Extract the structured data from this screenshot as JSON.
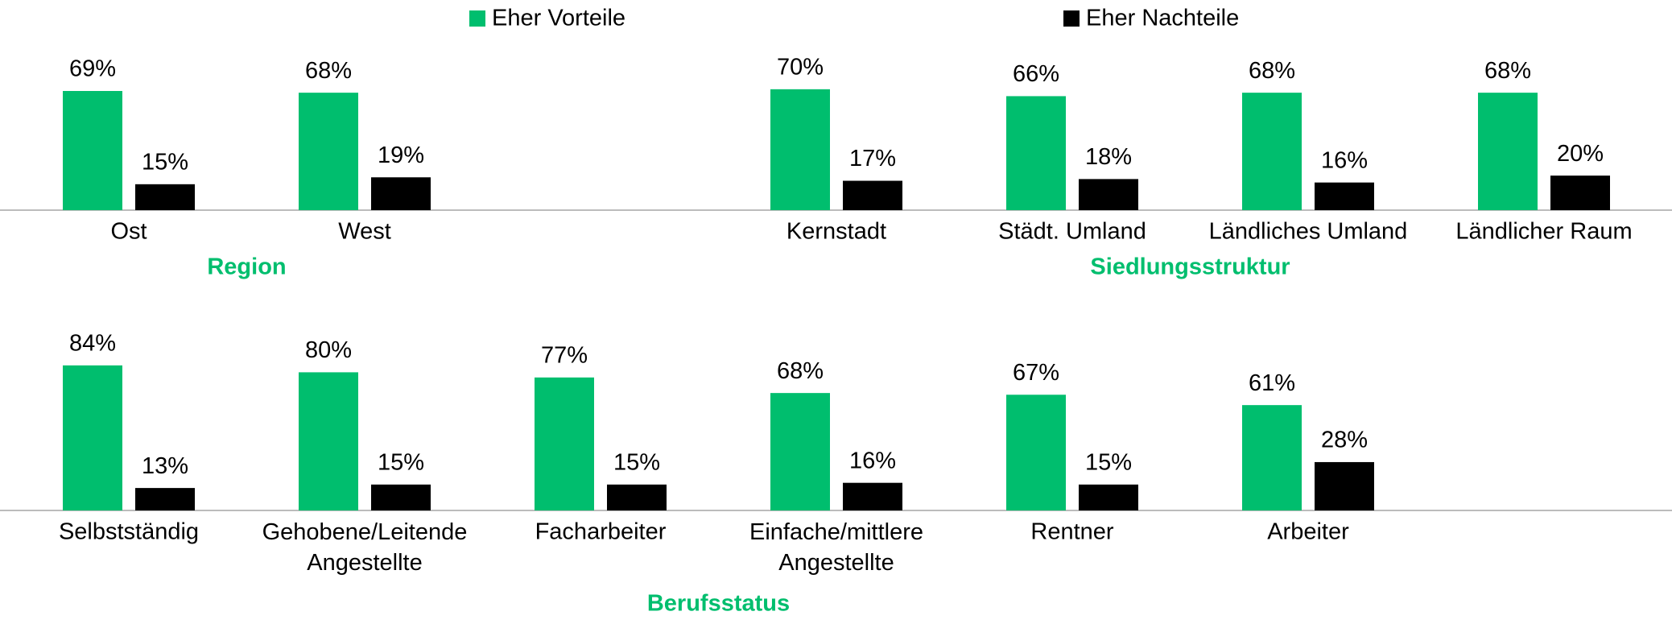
{
  "chart_data": [
    {
      "type": "bar",
      "title": "Region",
      "categories": [
        "Ost",
        "West"
      ],
      "series": [
        {
          "name": "Eher Vorteile",
          "color": "#00be6e",
          "values": [
            69,
            68
          ],
          "value_labels": [
            "69%",
            "68%"
          ]
        },
        {
          "name": "Eher Nachteile",
          "color": "#000000",
          "values": [
            15,
            19
          ],
          "value_labels": [
            "15%",
            "19%"
          ]
        }
      ]
    },
    {
      "type": "bar",
      "title": "Siedlungsstruktur",
      "categories": [
        "Kernstadt",
        "Städt. Umland",
        "Ländliches Umland",
        "Ländlicher Raum"
      ],
      "series": [
        {
          "name": "Eher Vorteile",
          "color": "#00be6e",
          "values": [
            70,
            66,
            68,
            68
          ],
          "value_labels": [
            "70%",
            "66%",
            "68%",
            "68%"
          ]
        },
        {
          "name": "Eher Nachteile",
          "color": "#000000",
          "values": [
            17,
            18,
            16,
            20
          ],
          "value_labels": [
            "17%",
            "18%",
            "16%",
            "20%"
          ]
        }
      ]
    },
    {
      "type": "bar",
      "title": "Berufsstatus",
      "categories": [
        "Selbstständig",
        "Gehobene/Leitende\nAngestellte",
        "Facharbeiter",
        "Einfache/mittlere\nAngestellte",
        "Rentner",
        "Arbeiter"
      ],
      "series": [
        {
          "name": "Eher Vorteile",
          "color": "#00be6e",
          "values": [
            84,
            80,
            77,
            68,
            67,
            61
          ],
          "value_labels": [
            "84%",
            "80%",
            "77%",
            "68%",
            "67%",
            "61%"
          ]
        },
        {
          "name": "Eher Nachteile",
          "color": "#000000",
          "values": [
            13,
            15,
            15,
            16,
            15,
            28
          ],
          "value_labels": [
            "13%",
            "15%",
            "15%",
            "16%",
            "15%",
            "28%"
          ]
        }
      ]
    }
  ]
}
